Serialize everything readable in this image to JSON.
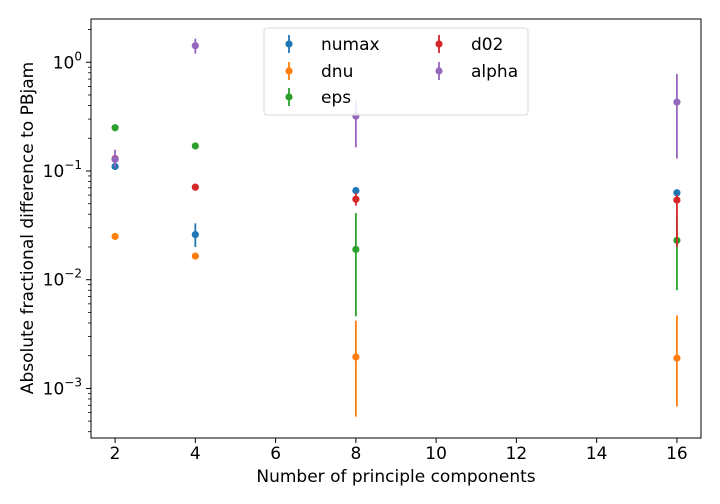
{
  "chart_data": {
    "type": "scatter",
    "xlabel": "Number of principle components",
    "ylabel": "Absolute fractional difference to PBjam",
    "xlim": [
      1.4,
      16.6
    ],
    "ylim": [
      0.00035,
      2.5
    ],
    "yscale": "log",
    "x_ticks": [
      2,
      4,
      6,
      8,
      10,
      12,
      14,
      16
    ],
    "x_tick_labels": [
      "2",
      "4",
      "6",
      "8",
      "10",
      "12",
      "14",
      "16"
    ],
    "y_ticks": [
      0.001,
      0.01,
      0.1,
      1
    ],
    "y_tick_labels": [
      {
        "base": "10",
        "exp": "−3"
      },
      {
        "base": "10",
        "exp": "−2"
      },
      {
        "base": "10",
        "exp": "−1"
      },
      {
        "base": "10",
        "exp": "0"
      }
    ],
    "grid": false,
    "legend": {
      "placement": "top-center",
      "columns": 2
    },
    "series": [
      {
        "name": "numax",
        "color": "#1f77b4",
        "points": [
          {
            "x": 2,
            "y": 0.11,
            "lo": 0.105,
            "hi": 0.116
          },
          {
            "x": 4,
            "y": 0.026,
            "lo": 0.02,
            "hi": 0.033
          },
          {
            "x": 8,
            "y": 0.066,
            "lo": 0.062,
            "hi": 0.071
          },
          {
            "x": 16,
            "y": 0.063,
            "lo": 0.058,
            "hi": 0.068
          }
        ]
      },
      {
        "name": "dnu",
        "color": "#ff7f0e",
        "points": [
          {
            "x": 2,
            "y": 0.025,
            "lo": 0.024,
            "hi": 0.026
          },
          {
            "x": 4,
            "y": 0.0165,
            "lo": 0.0155,
            "hi": 0.0175
          },
          {
            "x": 8,
            "y": 0.00195,
            "lo": 0.00055,
            "hi": 0.0042
          },
          {
            "x": 16,
            "y": 0.0019,
            "lo": 0.00068,
            "hi": 0.0047
          }
        ]
      },
      {
        "name": "eps",
        "color": "#2ca02c",
        "points": [
          {
            "x": 2,
            "y": 0.25,
            "lo": 0.24,
            "hi": 0.26
          },
          {
            "x": 4,
            "y": 0.17,
            "lo": 0.163,
            "hi": 0.177
          },
          {
            "x": 8,
            "y": 0.019,
            "lo": 0.0046,
            "hi": 0.041
          },
          {
            "x": 16,
            "y": 0.023,
            "lo": 0.008,
            "hi": 0.038
          }
        ]
      },
      {
        "name": "d02",
        "color": "#d62728",
        "points": [
          {
            "x": 2,
            "y": 0.13,
            "lo": 0.123,
            "hi": 0.137
          },
          {
            "x": 4,
            "y": 0.071,
            "lo": 0.066,
            "hi": 0.076
          },
          {
            "x": 8,
            "y": 0.055,
            "lo": 0.048,
            "hi": 0.063
          },
          {
            "x": 16,
            "y": 0.054,
            "lo": 0.02,
            "hi": 0.06
          }
        ]
      },
      {
        "name": "alpha",
        "color": "#9467bd",
        "points": [
          {
            "x": 2,
            "y": 0.128,
            "lo": 0.108,
            "hi": 0.157
          },
          {
            "x": 4,
            "y": 1.42,
            "lo": 1.2,
            "hi": 1.65
          },
          {
            "x": 8,
            "y": 0.32,
            "lo": 0.165,
            "hi": 0.44
          },
          {
            "x": 16,
            "y": 0.43,
            "lo": 0.13,
            "hi": 0.78
          }
        ]
      }
    ]
  }
}
